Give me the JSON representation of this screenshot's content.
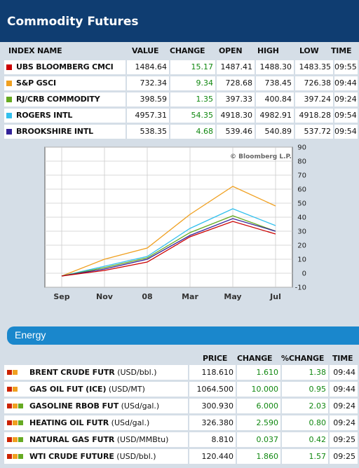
{
  "header": {
    "title": "Commodity Futures"
  },
  "index_table": {
    "columns": [
      "INDEX NAME",
      "VALUE",
      "CHANGE",
      "OPEN",
      "HIGH",
      "LOW",
      "TIME"
    ],
    "rows": [
      {
        "name": "UBS BLOOMBERG CMCI",
        "color": "#cc0000",
        "value": "1484.64",
        "change": "15.17",
        "open": "1487.41",
        "high": "1488.30",
        "low": "1483.35",
        "time": "09:55"
      },
      {
        "name": "S&P GSCI",
        "color": "#f0a020",
        "value": "732.34",
        "change": "9.34",
        "open": "728.68",
        "high": "738.45",
        "low": "726.38",
        "time": "09:44"
      },
      {
        "name": "RJ/CRB COMMODITY",
        "color": "#66aa22",
        "value": "398.59",
        "change": "1.35",
        "open": "397.33",
        "high": "400.84",
        "low": "397.24",
        "time": "09:24"
      },
      {
        "name": "ROGERS INTL",
        "color": "#33c0ee",
        "value": "4957.31",
        "change": "54.35",
        "open": "4918.30",
        "high": "4982.91",
        "low": "4918.28",
        "time": "09:54"
      },
      {
        "name": "BROOKSHIRE INTL",
        "color": "#332299",
        "value": "538.35",
        "change": "4.68",
        "open": "539.46",
        "high": "540.89",
        "low": "537.72",
        "time": "09:54"
      }
    ]
  },
  "chart": {
    "watermark": "© Bloomberg L.P.",
    "x_labels": [
      "Sep",
      "Nov",
      "08",
      "Mar",
      "May",
      "Jul"
    ],
    "y_ticks": [
      "90",
      "80",
      "70",
      "60",
      "50",
      "40",
      "30",
      "20",
      "10",
      "0",
      "-10"
    ]
  },
  "chart_data": {
    "type": "line",
    "x": [
      "Sep",
      "Nov",
      "08",
      "Mar",
      "May",
      "Jul"
    ],
    "ylim": [
      -10,
      90
    ],
    "y_ticks": [
      90,
      80,
      70,
      60,
      50,
      40,
      30,
      20,
      10,
      0,
      -10
    ],
    "grid": true,
    "series": [
      {
        "color": "#f0a020",
        "values": [
          -2,
          10,
          18,
          42,
          62,
          48
        ]
      },
      {
        "color": "#33c0ee",
        "values": [
          -2,
          5,
          12,
          32,
          46,
          34
        ]
      },
      {
        "color": "#66aa22",
        "values": [
          -2,
          4,
          11,
          29,
          41,
          30
        ]
      },
      {
        "color": "#332299",
        "values": [
          -2,
          3,
          10,
          27,
          39,
          30
        ]
      },
      {
        "color": "#cc0000",
        "values": [
          -2,
          2,
          8,
          26,
          37,
          28
        ]
      }
    ]
  },
  "energy": {
    "title": "Energy",
    "columns": [
      "PRICE",
      "CHANGE",
      "%CHANGE",
      "TIME"
    ],
    "rows": [
      {
        "name": "BRENT CRUDE FUTR",
        "unit": "(USD/bbl.)",
        "squares": [
          "#cc2200",
          "#f0a020"
        ],
        "price": "118.610",
        "change": "1.610",
        "pct": "1.38",
        "time": "09:44"
      },
      {
        "name": "GAS OIL FUT (ICE)",
        "unit": "(USD/MT)",
        "squares": [
          "#cc2200",
          "#f0a020"
        ],
        "price": "1064.500",
        "change": "10.000",
        "pct": "0.95",
        "time": "09:44"
      },
      {
        "name": "GASOLINE RBOB FUT",
        "unit": "(USd/gal.)",
        "squares": [
          "#cc2200",
          "#f0a020",
          "#66aa22"
        ],
        "price": "300.930",
        "change": "6.000",
        "pct": "2.03",
        "time": "09:24"
      },
      {
        "name": "HEATING OIL FUTR",
        "unit": "(USd/gal.)",
        "squares": [
          "#cc2200",
          "#f0a020",
          "#66aa22"
        ],
        "price": "326.380",
        "change": "2.590",
        "pct": "0.80",
        "time": "09:24"
      },
      {
        "name": "NATURAL GAS FUTR",
        "unit": "(USD/MMBtu)",
        "squares": [
          "#cc2200",
          "#f0a020",
          "#66aa22"
        ],
        "price": "8.810",
        "change": "0.037",
        "pct": "0.42",
        "time": "09:25"
      },
      {
        "name": "WTI CRUDE FUTURE",
        "unit": "(USD/bbl.)",
        "squares": [
          "#cc2200",
          "#f0a020",
          "#66aa22"
        ],
        "price": "120.440",
        "change": "1.860",
        "pct": "1.57",
        "time": "09:25"
      }
    ]
  }
}
